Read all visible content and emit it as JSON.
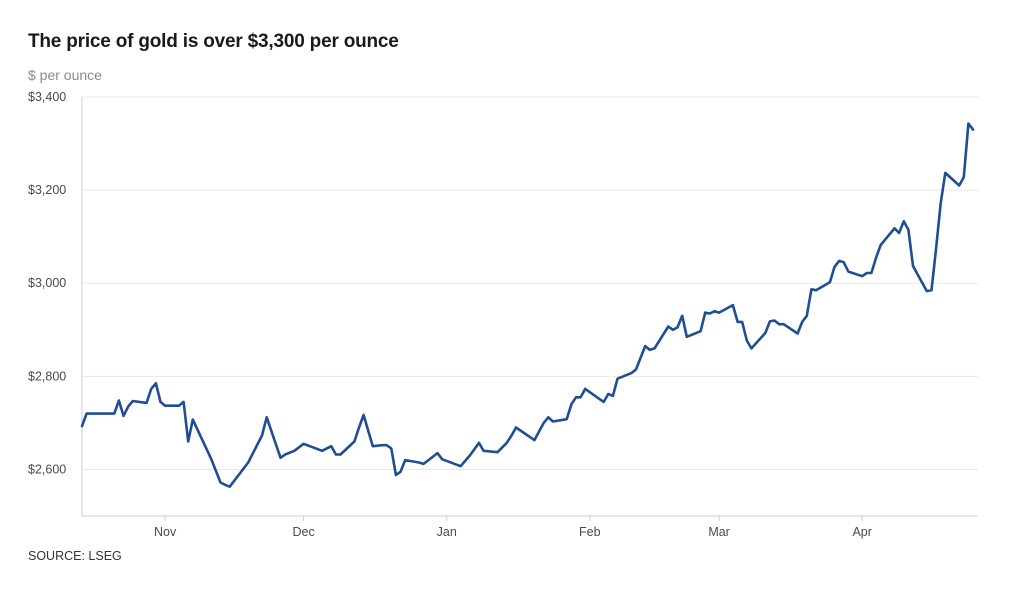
{
  "header": {
    "title": "The price of gold is over $3,300 per ounce",
    "unit": "$ per ounce"
  },
  "footer": {
    "source": "SOURCE: LSEG"
  },
  "colors": {
    "line": "#1f4e92",
    "grid": "#e8e8e8",
    "axis": "#cfcfcf"
  },
  "chart_data": {
    "type": "line",
    "title": "The price of gold is over $3,300 per ounce",
    "ylabel": "$ per ounce",
    "ylim": [
      2500,
      3400
    ],
    "yticks": [
      2600,
      2800,
      3000,
      3200,
      3400
    ],
    "ytick_labels": [
      "$2,600",
      "$2,800",
      "$3,000",
      "$3,200",
      "$3,400"
    ],
    "xlim": [
      "2024-10-14",
      "2025-04-17"
    ],
    "xticks": [
      "2024-11-01",
      "2024-12-01",
      "2025-01-01",
      "2025-02-01",
      "2025-03-01",
      "2025-04-01"
    ],
    "xtick_labels": [
      "Nov",
      "Dec",
      "Jan",
      "Feb",
      "Mar",
      "Apr"
    ],
    "grid": true,
    "series": [
      {
        "points": [
          [
            "2024-10-14",
            2693
          ],
          [
            "2024-10-15",
            2720
          ],
          [
            "2024-10-17",
            2720
          ],
          [
            "2024-10-18",
            2720
          ],
          [
            "2024-10-21",
            2720
          ],
          [
            "2024-10-22",
            2748
          ],
          [
            "2024-10-23",
            2715
          ],
          [
            "2024-10-24",
            2735
          ],
          [
            "2024-10-25",
            2747
          ],
          [
            "2024-10-28",
            2743
          ],
          [
            "2024-10-29",
            2773
          ],
          [
            "2024-10-30",
            2785
          ],
          [
            "2024-10-31",
            2745
          ],
          [
            "2024-11-01",
            2737
          ],
          [
            "2024-11-04",
            2737
          ],
          [
            "2024-11-05",
            2745
          ],
          [
            "2024-11-06",
            2660
          ],
          [
            "2024-11-07",
            2707
          ],
          [
            "2024-11-11",
            2622
          ],
          [
            "2024-11-13",
            2572
          ],
          [
            "2024-11-14",
            2567
          ],
          [
            "2024-11-15",
            2563
          ],
          [
            "2024-11-19",
            2615
          ],
          [
            "2024-11-22",
            2673
          ],
          [
            "2024-11-23",
            2712
          ],
          [
            "2024-11-26",
            2625
          ],
          [
            "2024-11-27",
            2632
          ],
          [
            "2024-11-29",
            2640
          ],
          [
            "2024-12-01",
            2655
          ],
          [
            "2024-12-05",
            2640
          ],
          [
            "2024-12-07",
            2650
          ],
          [
            "2024-12-08",
            2632
          ],
          [
            "2024-12-09",
            2632
          ],
          [
            "2024-12-12",
            2660
          ],
          [
            "2024-12-13",
            2690
          ],
          [
            "2024-12-14",
            2717
          ],
          [
            "2024-12-16",
            2650
          ],
          [
            "2024-12-18",
            2652
          ],
          [
            "2024-12-19",
            2652
          ],
          [
            "2024-12-20",
            2645
          ],
          [
            "2024-12-21",
            2588
          ],
          [
            "2024-12-22",
            2595
          ],
          [
            "2024-12-23",
            2620
          ],
          [
            "2024-12-26",
            2615
          ],
          [
            "2024-12-27",
            2612
          ],
          [
            "2024-12-30",
            2635
          ],
          [
            "2024-12-31",
            2622
          ],
          [
            "2025-01-04",
            2607
          ],
          [
            "2025-01-06",
            2630
          ],
          [
            "2025-01-08",
            2657
          ],
          [
            "2025-01-09",
            2640
          ],
          [
            "2025-01-12",
            2637
          ],
          [
            "2025-01-14",
            2657
          ],
          [
            "2025-01-15",
            2672
          ],
          [
            "2025-01-16",
            2690
          ],
          [
            "2025-01-20",
            2663
          ],
          [
            "2025-01-22",
            2700
          ],
          [
            "2025-01-23",
            2712
          ],
          [
            "2025-01-24",
            2703
          ],
          [
            "2025-01-27",
            2708
          ],
          [
            "2025-01-28",
            2740
          ],
          [
            "2025-01-29",
            2755
          ],
          [
            "2025-01-30",
            2755
          ],
          [
            "2025-01-31",
            2773
          ],
          [
            "2025-02-04",
            2745
          ],
          [
            "2025-02-05",
            2762
          ],
          [
            "2025-02-06",
            2758
          ],
          [
            "2025-02-07",
            2795
          ],
          [
            "2025-02-10",
            2807
          ],
          [
            "2025-02-11",
            2815
          ],
          [
            "2025-02-13",
            2865
          ],
          [
            "2025-02-14",
            2857
          ],
          [
            "2025-02-15",
            2860
          ],
          [
            "2025-02-18",
            2907
          ],
          [
            "2025-02-19",
            2900
          ],
          [
            "2025-02-20",
            2905
          ],
          [
            "2025-02-21",
            2930
          ],
          [
            "2025-02-22",
            2885
          ],
          [
            "2025-02-25",
            2897
          ],
          [
            "2025-02-26",
            2937
          ],
          [
            "2025-02-27",
            2935
          ],
          [
            "2025-02-28",
            2940
          ],
          [
            "2025-03-01",
            2937
          ],
          [
            "2025-03-04",
            2953
          ],
          [
            "2025-03-05",
            2917
          ],
          [
            "2025-03-06",
            2917
          ],
          [
            "2025-03-07",
            2877
          ],
          [
            "2025-03-08",
            2860
          ],
          [
            "2025-03-11",
            2893
          ],
          [
            "2025-03-12",
            2918
          ],
          [
            "2025-03-13",
            2920
          ],
          [
            "2025-03-14",
            2912
          ],
          [
            "2025-03-15",
            2912
          ],
          [
            "2025-03-18",
            2892
          ],
          [
            "2025-03-19",
            2917
          ],
          [
            "2025-03-20",
            2930
          ],
          [
            "2025-03-21",
            2987
          ],
          [
            "2025-03-22",
            2985
          ],
          [
            "2025-03-25",
            3002
          ],
          [
            "2025-03-26",
            3035
          ],
          [
            "2025-03-27",
            3048
          ],
          [
            "2025-03-28",
            3045
          ],
          [
            "2025-03-29",
            3025
          ],
          [
            "2025-04-01",
            3015
          ],
          [
            "2025-04-02",
            3022
          ],
          [
            "2025-04-03",
            3022
          ],
          [
            "2025-04-04",
            3055
          ],
          [
            "2025-04-05",
            3082
          ],
          [
            "2025-04-08",
            3118
          ],
          [
            "2025-04-09",
            3108
          ],
          [
            "2025-04-10",
            3133
          ],
          [
            "2025-04-11",
            3115
          ],
          [
            "2025-04-12",
            3037
          ],
          [
            "2025-04-15",
            2983
          ],
          [
            "2025-04-16",
            2985
          ],
          [
            "2025-04-17",
            3075
          ],
          [
            "2025-04-18",
            3172
          ],
          [
            "2025-04-19",
            3237
          ],
          [
            "2025-04-22",
            3210
          ],
          [
            "2025-04-23",
            3228
          ],
          [
            "2025-04-24",
            3343
          ],
          [
            "2025-04-25",
            3330
          ]
        ]
      }
    ]
  }
}
